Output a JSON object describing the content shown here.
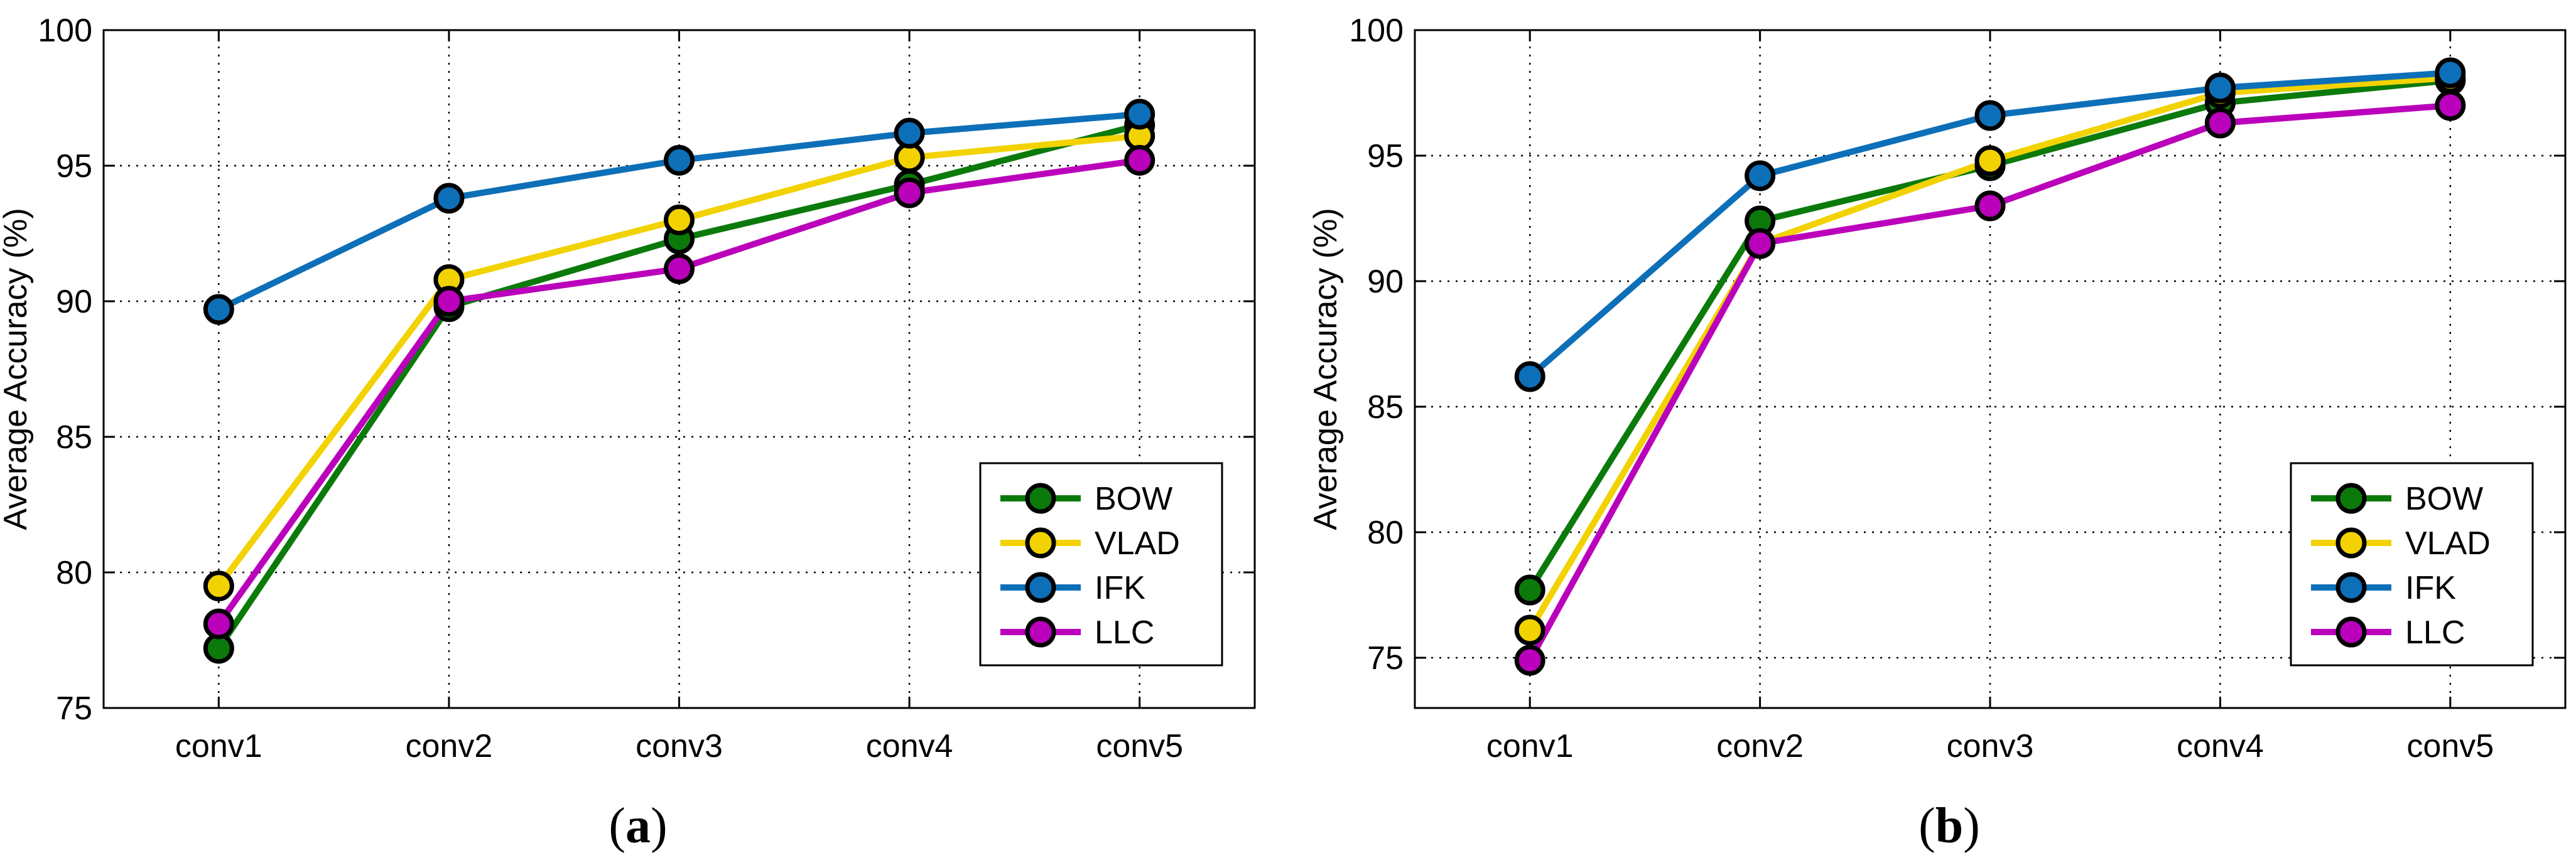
{
  "colors": {
    "BOW": "#0b7a0b",
    "VLAD": "#f2d200",
    "IFK": "#0d6fb8",
    "LLC": "#bb00bb"
  },
  "chart_data": [
    {
      "type": "line",
      "panel": "(a)",
      "caption_paren_open": "(",
      "caption_letter": "a",
      "caption_paren_close": ")",
      "categories": [
        "conv1",
        "conv2",
        "conv3",
        "conv4",
        "conv5"
      ],
      "ylabel": "Average Accuracy (%)",
      "xlabel": "",
      "ylim": [
        75,
        100
      ],
      "yticks": [
        75,
        80,
        85,
        90,
        95,
        100
      ],
      "grid": true,
      "legend_position": "bottom-right",
      "series": [
        {
          "name": "BOW",
          "values": [
            77.2,
            89.8,
            92.3,
            94.3,
            96.5
          ]
        },
        {
          "name": "VLAD",
          "values": [
            79.5,
            90.8,
            93.0,
            95.3,
            96.1
          ]
        },
        {
          "name": "IFK",
          "values": [
            89.7,
            93.8,
            95.2,
            96.2,
            96.9
          ]
        },
        {
          "name": "LLC",
          "values": [
            78.1,
            90.0,
            91.2,
            94.0,
            95.2
          ]
        }
      ]
    },
    {
      "type": "line",
      "panel": "(b)",
      "caption_paren_open": "(",
      "caption_letter": "b",
      "caption_paren_close": ")",
      "categories": [
        "conv1",
        "conv2",
        "conv3",
        "conv4",
        "conv5"
      ],
      "ylabel": "Average Accuracy (%)",
      "xlabel": "",
      "ylim": [
        73,
        100
      ],
      "yticks": [
        75,
        80,
        85,
        90,
        95,
        100
      ],
      "grid": true,
      "legend_position": "bottom-right",
      "series": [
        {
          "name": "BOW",
          "values": [
            77.7,
            92.4,
            94.6,
            97.1,
            98.0
          ]
        },
        {
          "name": "VLAD",
          "values": [
            76.1,
            91.5,
            94.8,
            97.5,
            98.1
          ]
        },
        {
          "name": "IFK",
          "values": [
            86.2,
            94.2,
            96.6,
            97.7,
            98.3
          ]
        },
        {
          "name": "LLC",
          "values": [
            74.9,
            91.5,
            93.0,
            96.3,
            97.0
          ]
        }
      ]
    }
  ]
}
